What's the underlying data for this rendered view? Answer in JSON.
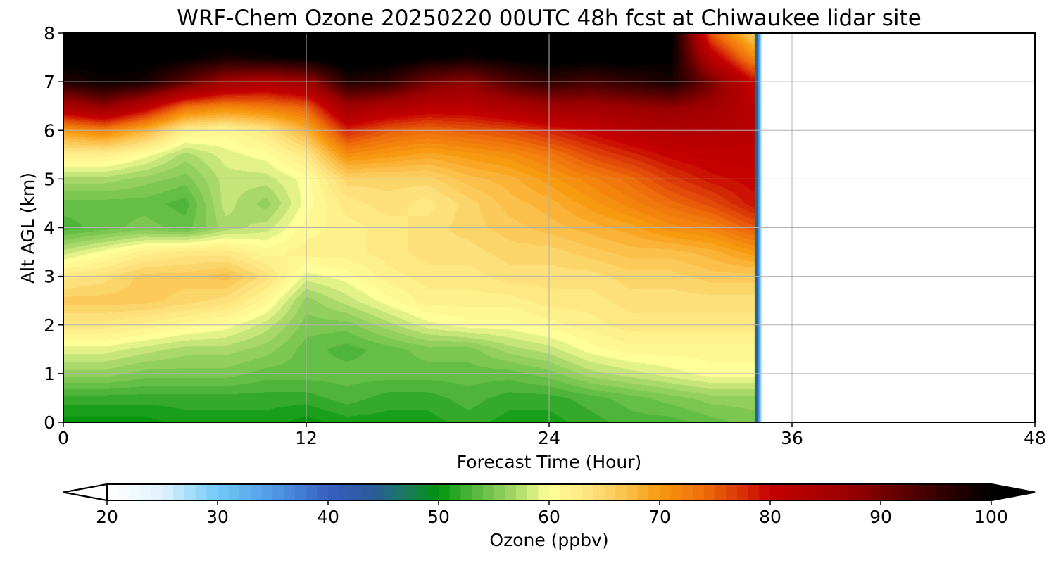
{
  "chart_data": {
    "type": "heatmap",
    "title": "WRF-Chem Ozone  20250220 00UTC 48h fcst at Chiwaukee lidar site",
    "xlabel": "Forecast Time (Hour)",
    "ylabel": "Alt AGL (km)",
    "xlim": [
      0,
      48
    ],
    "ylim": [
      0,
      8
    ],
    "xticks": [
      0,
      12,
      24,
      36,
      48
    ],
    "yticks": [
      0,
      1,
      2,
      3,
      4,
      5,
      6,
      7,
      8
    ],
    "grid": true,
    "data_end_hour": 34.2,
    "x": [
      0,
      2,
      4,
      6,
      8,
      10,
      12,
      14,
      16,
      18,
      20,
      22,
      24,
      26,
      28,
      30,
      32,
      34
    ],
    "y": [
      0,
      0.5,
      1,
      1.5,
      2,
      2.5,
      3,
      3.5,
      4,
      4.5,
      5,
      5.5,
      6,
      6.5,
      7,
      7.5,
      8
    ],
    "z": [
      [
        50,
        50,
        50,
        51,
        51,
        51,
        50,
        51,
        51,
        51,
        52,
        51,
        51,
        52,
        53,
        53,
        54,
        55
      ],
      [
        52,
        52,
        52,
        52,
        52,
        52,
        52,
        53,
        52,
        52,
        53,
        52,
        52,
        53,
        54,
        55,
        56,
        56
      ],
      [
        56,
        56,
        55,
        55,
        55,
        54,
        54,
        54,
        54,
        54,
        54,
        54,
        55,
        57,
        58,
        59,
        60,
        60
      ],
      [
        59,
        59,
        58,
        57,
        57,
        56,
        54,
        53,
        54,
        55,
        55,
        57,
        58,
        60,
        61,
        61,
        61,
        61
      ],
      [
        63,
        63,
        62,
        61,
        60,
        58,
        55,
        55,
        57,
        59,
        60,
        60,
        61,
        62,
        63,
        63,
        63,
        63
      ],
      [
        66,
        66,
        66,
        65,
        64,
        61,
        56,
        58,
        60,
        62,
        62,
        62,
        63,
        63,
        64,
        64,
        64,
        64
      ],
      [
        63,
        64,
        66,
        66,
        67,
        64,
        59,
        60,
        62,
        63,
        63,
        64,
        64,
        64,
        65,
        65,
        66,
        66
      ],
      [
        58,
        60,
        62,
        63,
        63,
        61,
        62,
        62,
        63,
        64,
        64,
        65,
        65,
        66,
        67,
        67,
        68,
        70
      ],
      [
        53,
        54,
        55,
        54,
        57,
        58,
        61,
        62,
        63,
        64,
        65,
        66,
        67,
        68,
        69,
        71,
        72,
        75
      ],
      [
        54,
        54,
        54,
        53,
        58,
        56,
        60,
        63,
        64,
        63,
        65,
        67,
        68,
        70,
        72,
        74,
        76,
        79
      ],
      [
        57,
        57,
        56,
        55,
        58,
        58,
        60,
        65,
        65,
        65,
        67,
        68,
        70,
        72,
        74,
        77,
        79,
        80
      ],
      [
        62,
        62,
        60,
        57,
        59,
        60,
        63,
        71,
        70,
        69,
        70,
        71,
        73,
        76,
        78,
        80,
        81,
        81
      ],
      [
        70,
        72,
        68,
        62,
        61,
        63,
        68,
        78,
        75,
        74,
        75,
        76,
        78,
        80,
        82,
        83,
        83,
        82
      ],
      [
        84,
        88,
        82,
        74,
        72,
        73,
        75,
        86,
        84,
        82,
        82,
        84,
        86,
        86,
        87,
        88,
        86,
        82
      ],
      [
        97,
        99,
        98,
        92,
        86,
        84,
        86,
        97,
        96,
        90,
        88,
        93,
        96,
        94,
        96,
        98,
        90,
        80
      ],
      [
        101,
        101,
        101,
        100,
        98,
        99,
        100,
        102,
        101,
        100,
        99,
        100,
        101,
        101,
        101,
        100,
        82,
        72
      ],
      [
        102,
        102,
        102,
        102,
        102,
        102,
        102,
        102,
        102,
        102,
        102,
        102,
        102,
        102,
        102,
        101,
        75,
        66
      ]
    ],
    "colorbar": {
      "label": "Ozone  (ppbv)",
      "min": 20,
      "max": 100,
      "ticks": [
        20,
        30,
        40,
        50,
        60,
        70,
        80,
        90,
        100
      ],
      "extend": "both",
      "colormap": [
        [
          20,
          "#ffffff"
        ],
        [
          25,
          "#dff2fd"
        ],
        [
          30,
          "#6fcaf7"
        ],
        [
          36,
          "#4a8fe0"
        ],
        [
          40,
          "#3660c0"
        ],
        [
          44,
          "#2a5a9a"
        ],
        [
          47,
          "#1a7a60"
        ],
        [
          50,
          "#00940a"
        ],
        [
          53,
          "#4fb53a"
        ],
        [
          57,
          "#a8d86a"
        ],
        [
          60,
          "#ffff99"
        ],
        [
          64,
          "#fde07a"
        ],
        [
          67,
          "#fbbf4a"
        ],
        [
          70,
          "#f79a10"
        ],
        [
          74,
          "#ee6c0a"
        ],
        [
          77,
          "#dc3a08"
        ],
        [
          80,
          "#c40000"
        ],
        [
          87,
          "#9a0000"
        ],
        [
          93,
          "#500000"
        ],
        [
          100,
          "#000000"
        ]
      ]
    }
  }
}
